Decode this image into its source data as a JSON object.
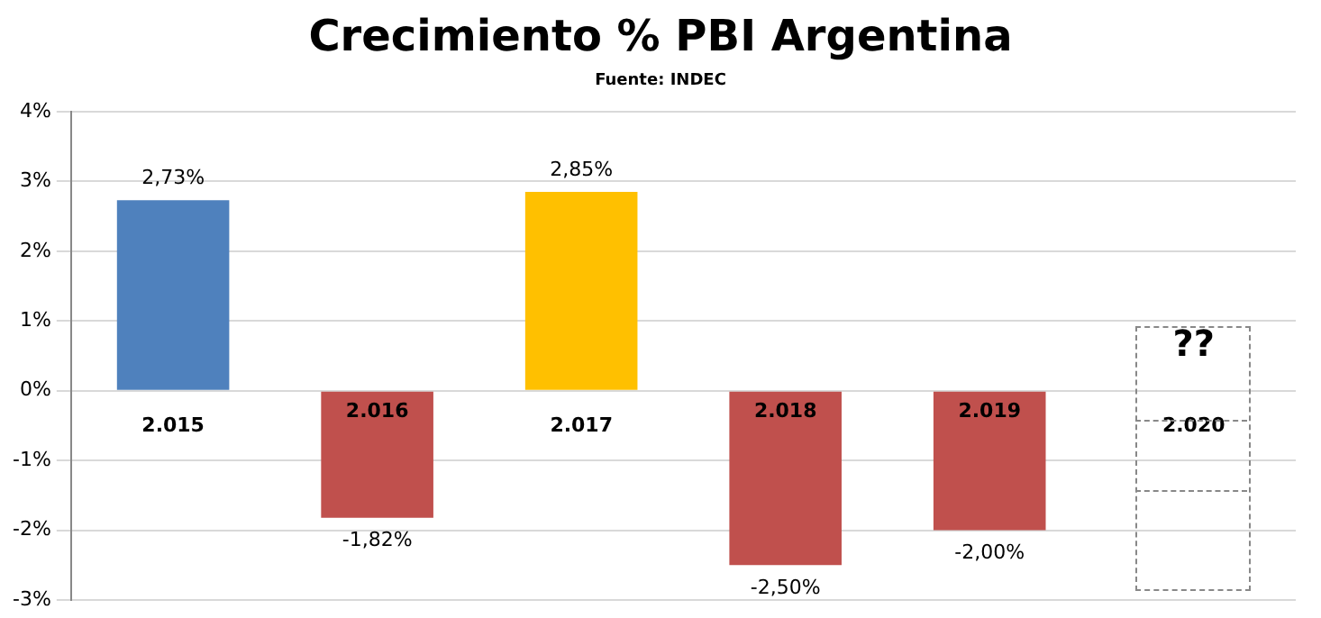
{
  "chart_data": {
    "type": "bar",
    "title": "Crecimiento % PBI Argentina",
    "subtitle": "Fuente: INDEC",
    "categories": [
      "2.015",
      "2.016",
      "2.017",
      "2.018",
      "2.019",
      "2.020"
    ],
    "values": [
      2.73,
      -1.82,
      2.85,
      -2.5,
      -2.0,
      null
    ],
    "colors": [
      "#4f81bd",
      "#c0504d",
      "#ffc000",
      "#c0504d",
      "#c0504d",
      "#c0504d"
    ],
    "value_labels": [
      "2,73%",
      "-1,82%",
      "2,85%",
      "-2,50%",
      "-2,00%",
      null
    ],
    "ylim": [
      -3,
      4
    ],
    "yticks": [
      {
        "value": -3,
        "label": "-3%"
      },
      {
        "value": -2,
        "label": "-2%"
      },
      {
        "value": -1,
        "label": "-1%"
      },
      {
        "value": 0,
        "label": "0%"
      },
      {
        "value": 1,
        "label": "1%"
      },
      {
        "value": 2,
        "label": "2%"
      },
      {
        "value": 3,
        "label": "3%"
      },
      {
        "value": 4,
        "label": "4%"
      }
    ],
    "grid": "y",
    "legend": false,
    "annotations": [
      "??"
    ]
  }
}
